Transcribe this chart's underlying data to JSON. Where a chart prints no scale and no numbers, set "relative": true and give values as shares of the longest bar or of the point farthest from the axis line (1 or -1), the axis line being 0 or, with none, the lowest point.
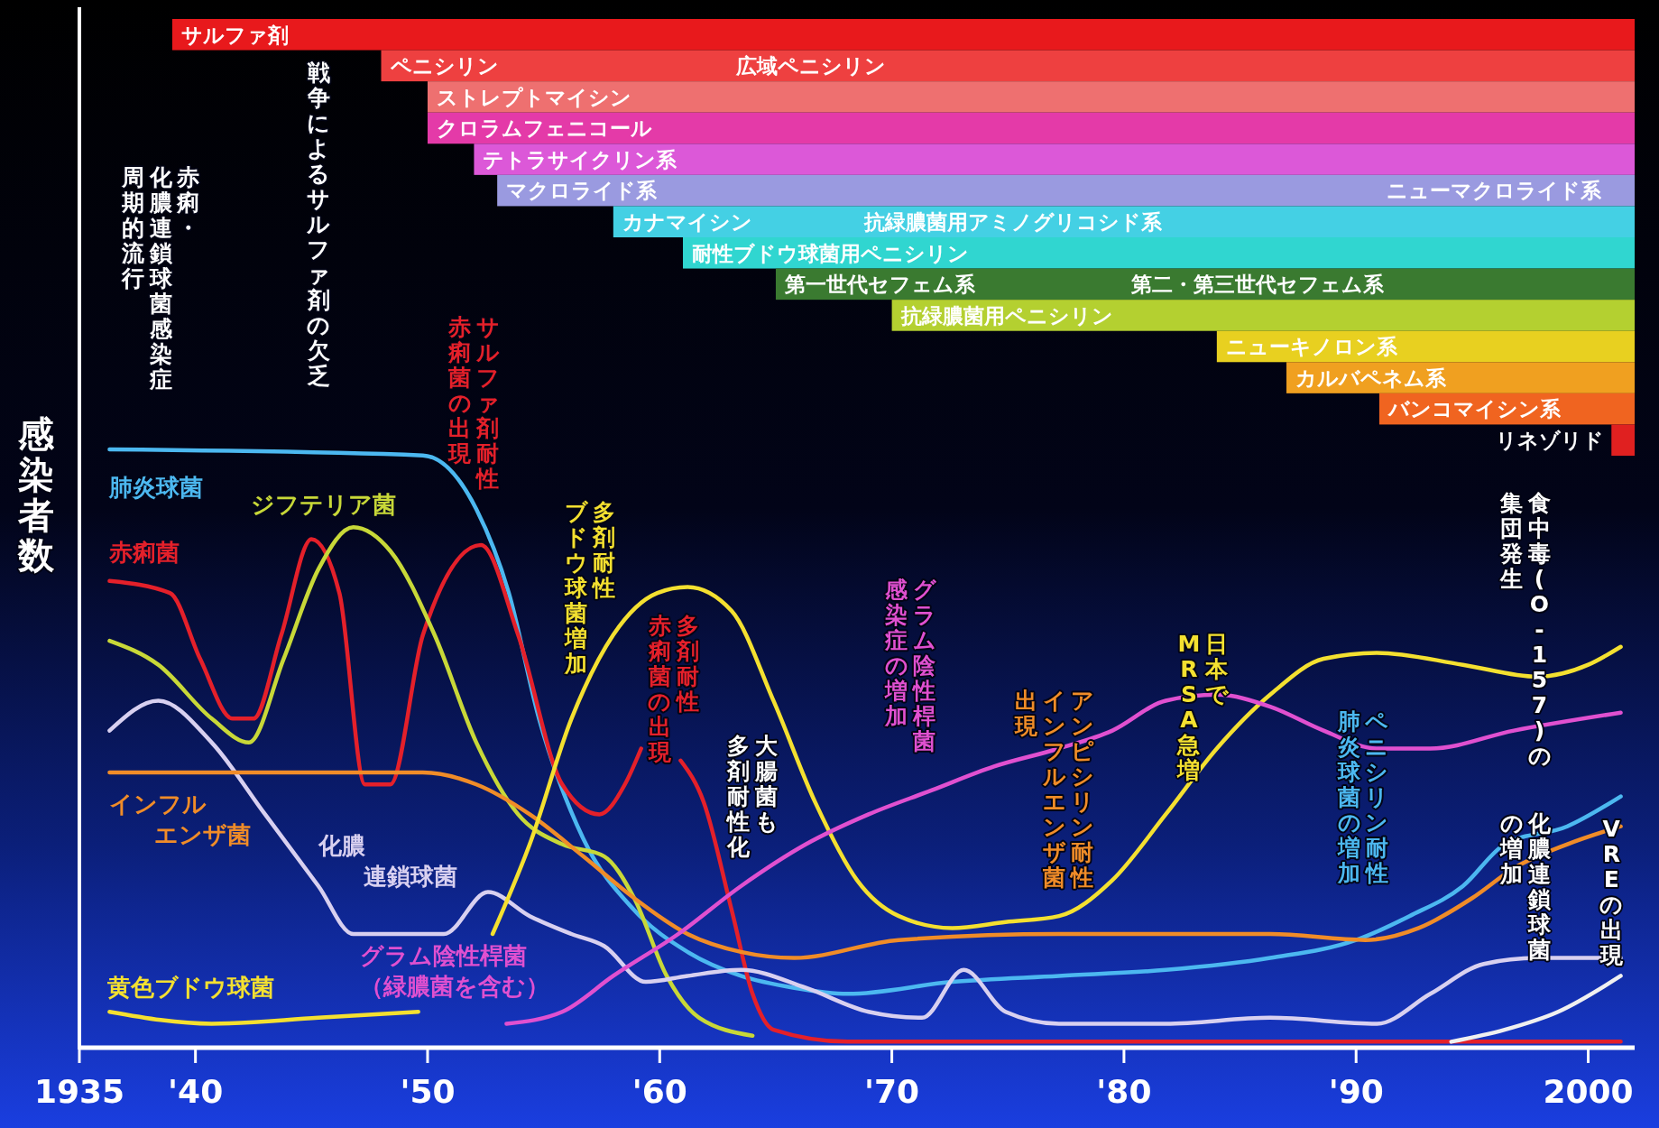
{
  "chart_data": [
    {
      "type": "bar",
      "orientation": "horizontal",
      "xlim": [
        1935,
        2002
      ],
      "tick_labels": "y",
      "categories": [
        "サルファ剤",
        "ペニシリン",
        "ストレプトマイシン",
        "クロラムフェニコール",
        "テトラサイクリン系",
        "マクロライド系",
        "カナマイシン",
        "耐性ブドウ球菌用ペニシリン",
        "第一世代セフェム系",
        "抗緑膿菌用ペニシリン",
        "ニューキノロン系",
        "カルバペネム系",
        "バンコマイシン系",
        "リネゾリド"
      ],
      "base": [
        1939,
        1948,
        1950,
        1950,
        1952,
        1953,
        1958,
        1961,
        1965,
        1970,
        1984,
        1987,
        1991,
        2001
      ],
      "values": [
        63,
        54,
        52,
        52,
        50,
        49,
        44,
        41,
        37,
        32,
        18,
        15,
        11,
        1
      ],
      "colors": [
        "#e8191c",
        "#ee4040",
        "#ee7070",
        "#e43aa8",
        "#dc58d8",
        "#9a9ae0",
        "#44d0e4",
        "#30d6d0",
        "#3a7a30",
        "#b4d030",
        "#e8d020",
        "#f0a020",
        "#f06420",
        "#e02020"
      ],
      "annotations": [
        {
          "text": "広域ペニシリン",
          "x": 1963,
          "y": "ペニシリン"
        },
        {
          "text": "ニューマクロライド系",
          "x": 1991,
          "y": "マクロライド系"
        },
        {
          "text": "抗緑膿菌用アミノグリコシド系",
          "x": 1968.5,
          "y": "カナマイシン"
        },
        {
          "text": "第二・第三世代セフェム系",
          "x": 1980,
          "y": "第一世代セフェム系"
        }
      ]
    },
    {
      "type": "line",
      "relative": true,
      "xlim": [
        1935,
        2002
      ],
      "ylabel": "感染者数",
      "xticks": [
        1935,
        {
          "value": 1940,
          "label": "'40"
        },
        {
          "value": 1950,
          "label": "'50"
        },
        {
          "value": 1960,
          "label": "'60"
        },
        {
          "value": 1970,
          "label": "'70"
        },
        {
          "value": 1980,
          "label": "'80"
        },
        {
          "value": 1990,
          "label": "'90"
        },
        2000
      ],
      "series": [
        {
          "name": "肺炎球菌",
          "color": "#4cb8f0",
          "x": [
            1936.3,
            1949.8,
            1952.1,
            1953.5,
            1954.8,
            1956.7,
            1958.9,
            1961.2,
            1963.5,
            1965.8,
            1968.1,
            1972.6,
            1977.2,
            1981.8,
            1986.3,
            1990,
            1992.3,
            1994.6,
            1996.4,
            1999.1,
            2001.4
          ],
          "values": [
            1,
            0.99,
            0.9,
            0.76,
            0.55,
            0.35,
            0.23,
            0.16,
            0.12,
            0.1,
            0.09,
            0.11,
            0.12,
            0.13,
            0.15,
            0.18,
            0.22,
            0.27,
            0.34,
            0.37,
            0.42
          ]
        },
        {
          "name": "赤痢菌",
          "color": "#e4202a",
          "x": [
            1936.3,
            1938.9,
            1940.2,
            1941.6,
            1942.5,
            1943.7,
            1945,
            1946.2,
            1947.3,
            1948.4,
            1949.8,
            1952.3,
            1953.9,
            1955.8,
            1957.4,
            1958.5,
            1959.2,
            1959.7,
            1960.9,
            1961.9,
            1963.1,
            1964,
            1964.9,
            1968.1,
            1977.2,
            2001.4
          ],
          "values": [
            0.78,
            0.76,
            0.65,
            0.55,
            0.55,
            0.69,
            0.85,
            0.76,
            0.44,
            0.44,
            0.69,
            0.84,
            0.69,
            0.44,
            0.39,
            0.44,
            0.5,
            null,
            0.48,
            0.41,
            0.23,
            0.09,
            0.03,
            0.01,
            0.01,
            0.01
          ]
        },
        {
          "name": "ジフテリア菌",
          "color": "#c8d838",
          "x": [
            1936.3,
            1938.4,
            1940.7,
            1942.3,
            1943.8,
            1945.3,
            1946.8,
            1948.4,
            1950.3,
            1952.1,
            1953.9,
            1955.8,
            1957.6,
            1958.9,
            1960.3,
            1961.7,
            1964
          ],
          "values": [
            0.68,
            0.64,
            0.55,
            0.51,
            0.65,
            0.8,
            0.87,
            0.83,
            0.69,
            0.51,
            0.39,
            0.34,
            0.32,
            0.25,
            0.12,
            0.05,
            0.02
          ]
        },
        {
          "name": "化膿連鎖球菌",
          "color": "#d8d0f0",
          "x": [
            1936.3,
            1938.4,
            1940.7,
            1943,
            1945.3,
            1946.8,
            1950.7,
            1952.6,
            1954.4,
            1956.2,
            1957.6,
            1959.4,
            1961.2,
            1963.5,
            1966.3,
            1969,
            1971.3,
            1973.1,
            1974.9,
            1977.2,
            1981.8,
            1986.3,
            1990.9,
            1993.2,
            1995.5,
            1997.8,
            2001.4
          ],
          "values": [
            0.53,
            0.58,
            0.51,
            0.39,
            0.27,
            0.19,
            0.19,
            0.26,
            0.22,
            0.19,
            0.17,
            0.11,
            0.12,
            0.13,
            0.1,
            0.06,
            0.05,
            0.13,
            0.06,
            0.04,
            0.04,
            0.05,
            0.04,
            0.09,
            0.14,
            0.15,
            0.15
          ]
        },
        {
          "name": "インフルエンザ菌",
          "color": "#f08c28",
          "x": [
            1936.3,
            1949.8,
            1952.1,
            1954.4,
            1956.7,
            1958.9,
            1961.2,
            1963.5,
            1965.8,
            1970.3,
            1977.2,
            1981.8,
            1986.3,
            1990.4,
            1992.7,
            1995,
            1996.8,
            1999.1,
            2001.4
          ],
          "values": [
            0.46,
            0.46,
            0.44,
            0.39,
            0.32,
            0.25,
            0.19,
            0.16,
            0.15,
            0.18,
            0.19,
            0.19,
            0.19,
            0.18,
            0.2,
            0.25,
            0.3,
            0.34,
            0.37
          ]
        },
        {
          "name": "黄色ブドウ球菌",
          "color": "#f4e030",
          "x": [
            1936.3,
            1940.7,
            1945.3,
            1949.6,
            1951.3,
            1952.8,
            1954.4,
            1956.2,
            1958,
            1959.9,
            1961.2,
            1963.1,
            1964.9,
            1966.7,
            1968.5,
            1970.3,
            1972.6,
            1974.9,
            1977.2,
            1979.5,
            1981.8,
            1984,
            1986.3,
            1988.6,
            1990.9,
            1994.6,
            1997.8,
            2000,
            2001.4
          ],
          "values": [
            0.06,
            0.04,
            0.05,
            0.06,
            null,
            0.19,
            0.34,
            0.55,
            0.69,
            0.76,
            0.77,
            0.73,
            0.58,
            0.41,
            0.28,
            0.22,
            0.2,
            0.21,
            0.22,
            0.28,
            0.39,
            0.5,
            0.59,
            0.65,
            0.66,
            0.64,
            0.62,
            0.64,
            0.67
          ]
        },
        {
          "name": "グラム陰性桿菌（緑膿菌を含む）",
          "color": "#e050d0",
          "x": [
            1953.4,
            1955.8,
            1958,
            1960.8,
            1963.5,
            1966.3,
            1969,
            1971.7,
            1974.4,
            1977.2,
            1979.5,
            1981.8,
            1984,
            1986.3,
            1988.6,
            1990.9,
            1993.2,
            1996.8,
            2001.4
          ],
          "values": [
            0.04,
            0.06,
            0.12,
            0.19,
            0.27,
            0.34,
            0.39,
            0.43,
            0.47,
            0.5,
            0.53,
            0.58,
            0.59,
            0.57,
            0.53,
            0.5,
            0.5,
            0.53,
            0.56
          ]
        },
        {
          "color": "#f0f0f0",
          "x": [
            1994.1,
            1996.4,
            1998.7,
            2001.4
          ],
          "values": [
            0.01,
            0.03,
            0.06,
            0.12
          ]
        }
      ],
      "annotations": [
        "赤痢・",
        "化膿連鎖球菌感染症",
        "周期的流行",
        "戦争によるサルファ剤の欠乏",
        "サルファ剤耐性",
        "赤痢菌の出現",
        "多剤耐性",
        "ブドウ球菌増加",
        "多剤耐性",
        "赤痢菌の出現",
        "大腸菌も",
        "多剤耐性化",
        "グラム陰性桿菌",
        "感染症の増加",
        "アンピシリン耐性",
        "インフルエンザ菌",
        "出現",
        "日本で",
        "MRSA急増",
        "ペニシリン耐性",
        "肺炎球菌の増加",
        "食中毒(O-157)の",
        "集団発生",
        "化膿連鎖球菌",
        "の増加",
        "VREの出現"
      ]
    }
  ]
}
